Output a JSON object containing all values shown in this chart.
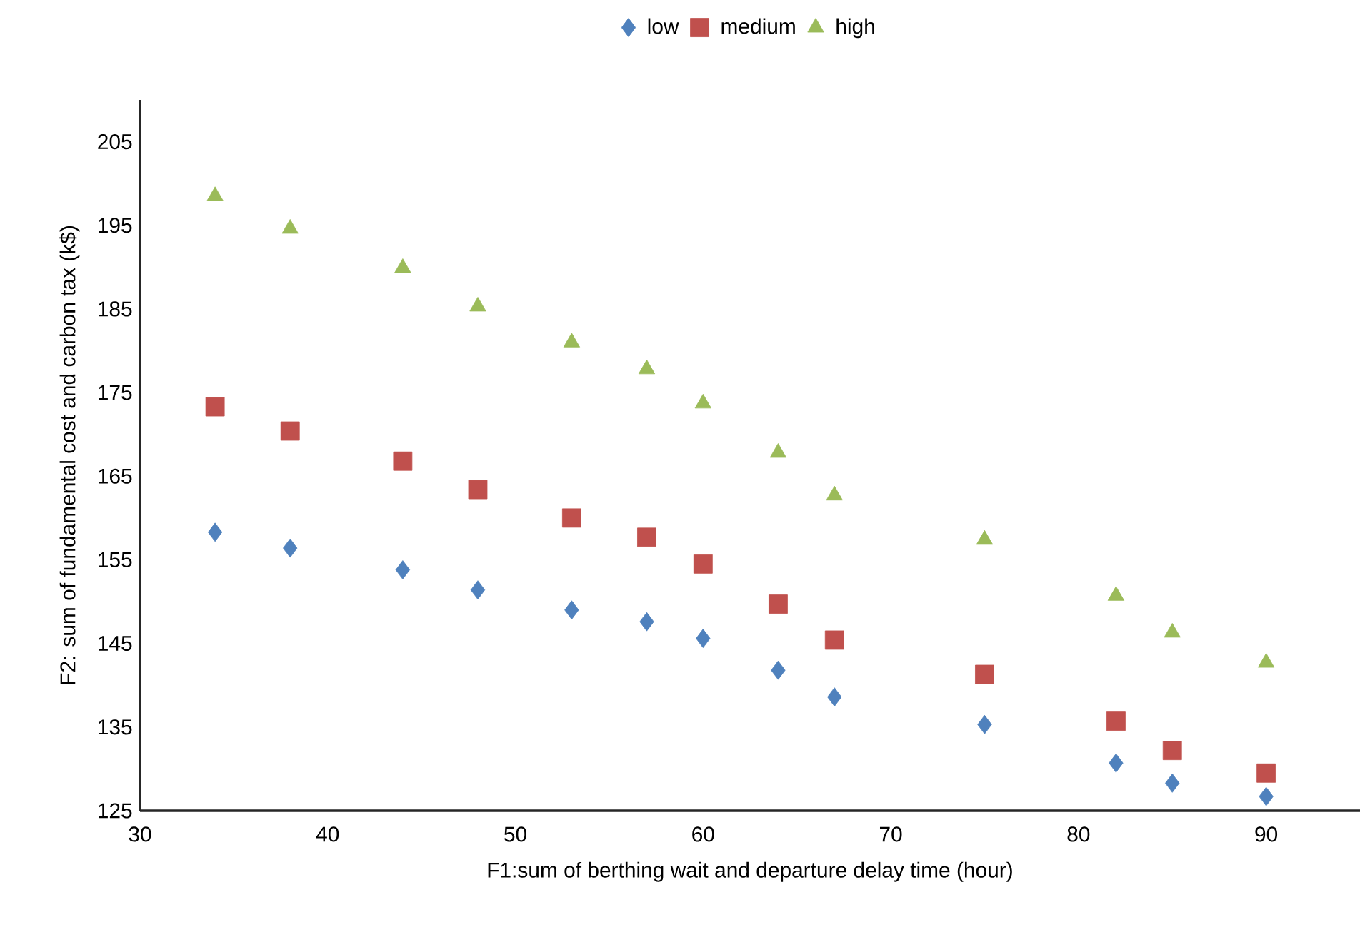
{
  "chart_data": {
    "type": "scatter",
    "xlabel": "F1:sum of berthing wait and departure delay time (hour)",
    "ylabel": "F2: sum of fundamental cost and carbon tax (k$)",
    "x": [
      34,
      38,
      44,
      48,
      53,
      57,
      60,
      64,
      67,
      75,
      82,
      85,
      90
    ],
    "series": [
      {
        "name": "low",
        "color": "#4f81bd",
        "marker": "diamond",
        "values": [
          158.3,
          156.4,
          153.8,
          151.4,
          149.0,
          147.6,
          145.6,
          141.8,
          138.6,
          135.3,
          130.7,
          128.3,
          126.7
        ]
      },
      {
        "name": "medium",
        "color": "#c0504d",
        "marker": "square",
        "values": [
          173.3,
          170.4,
          166.8,
          163.4,
          160.0,
          157.7,
          154.5,
          149.7,
          145.4,
          141.3,
          135.7,
          132.2,
          129.5
        ]
      },
      {
        "name": "high",
        "color": "#9bbb59",
        "marker": "triangle",
        "values": [
          198.5,
          194.6,
          189.9,
          185.3,
          181.0,
          177.8,
          173.7,
          167.8,
          162.7,
          157.4,
          150.7,
          146.3,
          142.7
        ]
      }
    ],
    "xlim": [
      30,
      95
    ],
    "xticks": [
      30,
      40,
      50,
      60,
      70,
      80,
      90
    ],
    "ylim": [
      125,
      210
    ],
    "yticks": [
      125,
      135,
      145,
      155,
      165,
      175,
      185,
      195,
      205
    ],
    "grid": false,
    "legend": "top"
  }
}
